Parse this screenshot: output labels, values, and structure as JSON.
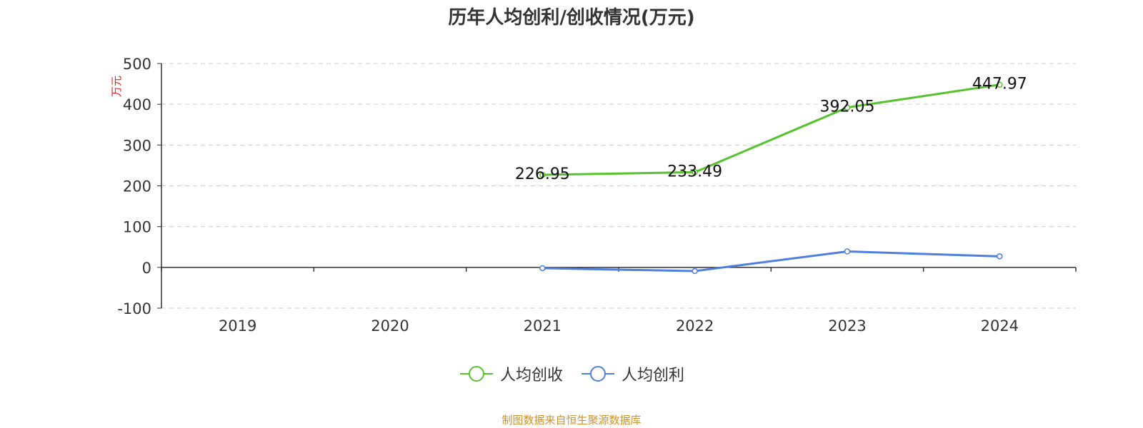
{
  "chart_data": {
    "type": "line",
    "title": "历年人均创利/创收情况(万元)",
    "ylabel": "万元",
    "xlabel": "",
    "categories": [
      "2019",
      "2020",
      "2021",
      "2022",
      "2023",
      "2024"
    ],
    "ylim": [
      -100,
      500
    ],
    "yticks": [
      "-100",
      "0",
      "100",
      "200",
      "300",
      "400",
      "500"
    ],
    "grid": true,
    "legend_position": "bottom",
    "series": [
      {
        "name": "人均创收",
        "color": "#58c22e",
        "values": [
          null,
          null,
          226.95,
          233.49,
          392.05,
          447.97
        ],
        "labels": [
          "",
          "",
          "226.95",
          "233.49",
          "392.05",
          "447.97"
        ]
      },
      {
        "name": "人均创利",
        "color": "#4e7fde",
        "values": [
          null,
          null,
          -2,
          -9,
          39,
          27
        ],
        "labels": [
          "",
          "",
          "",
          "",
          "",
          ""
        ]
      }
    ]
  },
  "legend": {
    "items": [
      {
        "label": "人均创收",
        "color": "#58c22e"
      },
      {
        "label": "人均创利",
        "color": "#4e7fde"
      }
    ]
  },
  "source_note": "制图数据来自恒生聚源数据库",
  "colors": {
    "axis": "#333333",
    "grid": "#cccccc",
    "ylabel": "#e02020"
  }
}
